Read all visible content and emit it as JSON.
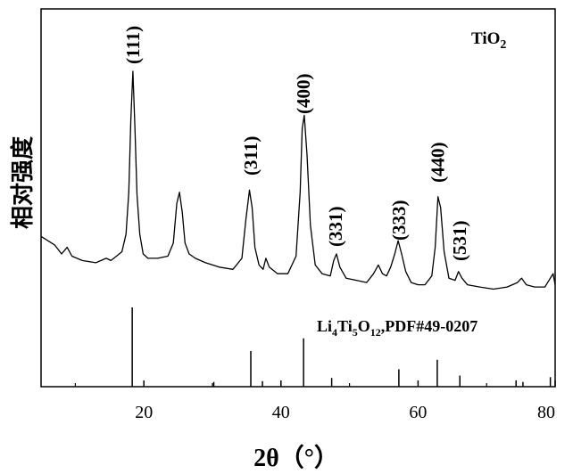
{
  "chart_data": {
    "type": "line",
    "xlabel": "2θ（°）",
    "ylabel": "相对强度",
    "xlim": [
      5,
      80
    ],
    "x_ticks": [
      "20",
      "40",
      "60",
      "80"
    ],
    "x_tick_values": [
      20,
      40,
      60,
      80
    ],
    "grid": false,
    "series": [
      {
        "name": "TiO2",
        "x": [
          5,
          7,
          8,
          8.8,
          9.5,
          11,
          13,
          14.5,
          15.2,
          16,
          16.8,
          17.4,
          17.8,
          18.1,
          18.4,
          18.7,
          19.0,
          19.4,
          19.9,
          20.6,
          22,
          23.5,
          24.3,
          24.8,
          25.2,
          25.6,
          26.0,
          26.6,
          27.5,
          29,
          31,
          33,
          34.3,
          34.9,
          35.4,
          35.8,
          36.2,
          36.8,
          37.4,
          37.8,
          38.3,
          39.5,
          41,
          42.2,
          42.8,
          43.1,
          43.4,
          43.8,
          44.3,
          45,
          46,
          47.2,
          47.7,
          48.1,
          48.6,
          49.5,
          51,
          52.5,
          53.5,
          54.2,
          54.8,
          55.4,
          56,
          56.6,
          57.1,
          57.6,
          58.2,
          59,
          60,
          61,
          62,
          62.5,
          62.9,
          63.3,
          63.8,
          64.5,
          65.4,
          65.9,
          66.4,
          67.2,
          69,
          71,
          73,
          74.5,
          75.1,
          75.8,
          77,
          78.5,
          79.3,
          79.7,
          80
        ],
        "y": [
          0.25,
          0.21,
          0.17,
          0.2,
          0.16,
          0.14,
          0.13,
          0.15,
          0.14,
          0.16,
          0.18,
          0.26,
          0.45,
          0.78,
          1.0,
          0.74,
          0.44,
          0.26,
          0.17,
          0.15,
          0.15,
          0.16,
          0.22,
          0.4,
          0.45,
          0.36,
          0.22,
          0.17,
          0.15,
          0.13,
          0.11,
          0.1,
          0.15,
          0.33,
          0.46,
          0.38,
          0.2,
          0.12,
          0.1,
          0.15,
          0.11,
          0.08,
          0.08,
          0.16,
          0.45,
          0.74,
          0.8,
          0.62,
          0.3,
          0.12,
          0.08,
          0.07,
          0.14,
          0.17,
          0.11,
          0.06,
          0.05,
          0.04,
          0.08,
          0.12,
          0.08,
          0.07,
          0.11,
          0.17,
          0.23,
          0.17,
          0.09,
          0.04,
          0.03,
          0.03,
          0.07,
          0.2,
          0.43,
          0.38,
          0.18,
          0.06,
          0.05,
          0.09,
          0.06,
          0.03,
          0.02,
          0.01,
          0.02,
          0.04,
          0.06,
          0.03,
          0.02,
          0.02,
          0.06,
          0.08,
          0.03
        ]
      },
      {
        "name": "Li4Ti5O12,PDF#49-0207",
        "type": "stick",
        "x": [
          18.3,
          30.2,
          35.6,
          37.3,
          43.3,
          47.4,
          57.2,
          62.8,
          66.1,
          74.3,
          75.3,
          79.3
        ],
        "y": [
          1.0,
          0.06,
          0.45,
          0.07,
          0.61,
          0.11,
          0.22,
          0.34,
          0.14,
          0.08,
          0.06,
          0.12
        ]
      }
    ],
    "annotations": [
      {
        "text": "(111)",
        "x": 18.4
      },
      {
        "text": "(311)",
        "x": 35.6
      },
      {
        "text": "(400)",
        "x": 43.3
      },
      {
        "text": "(331)",
        "x": 48.0
      },
      {
        "text": "(333)",
        "x": 57.2
      },
      {
        "text": "(440)",
        "x": 62.9
      },
      {
        "text": "(531)",
        "x": 66.1
      }
    ],
    "labels": {
      "tio2": "TiO",
      "tio2_sub": "2",
      "ref_parts": [
        "Li",
        "4",
        "Ti",
        "5",
        "O",
        "12",
        ",PDF#49-0207"
      ]
    }
  }
}
